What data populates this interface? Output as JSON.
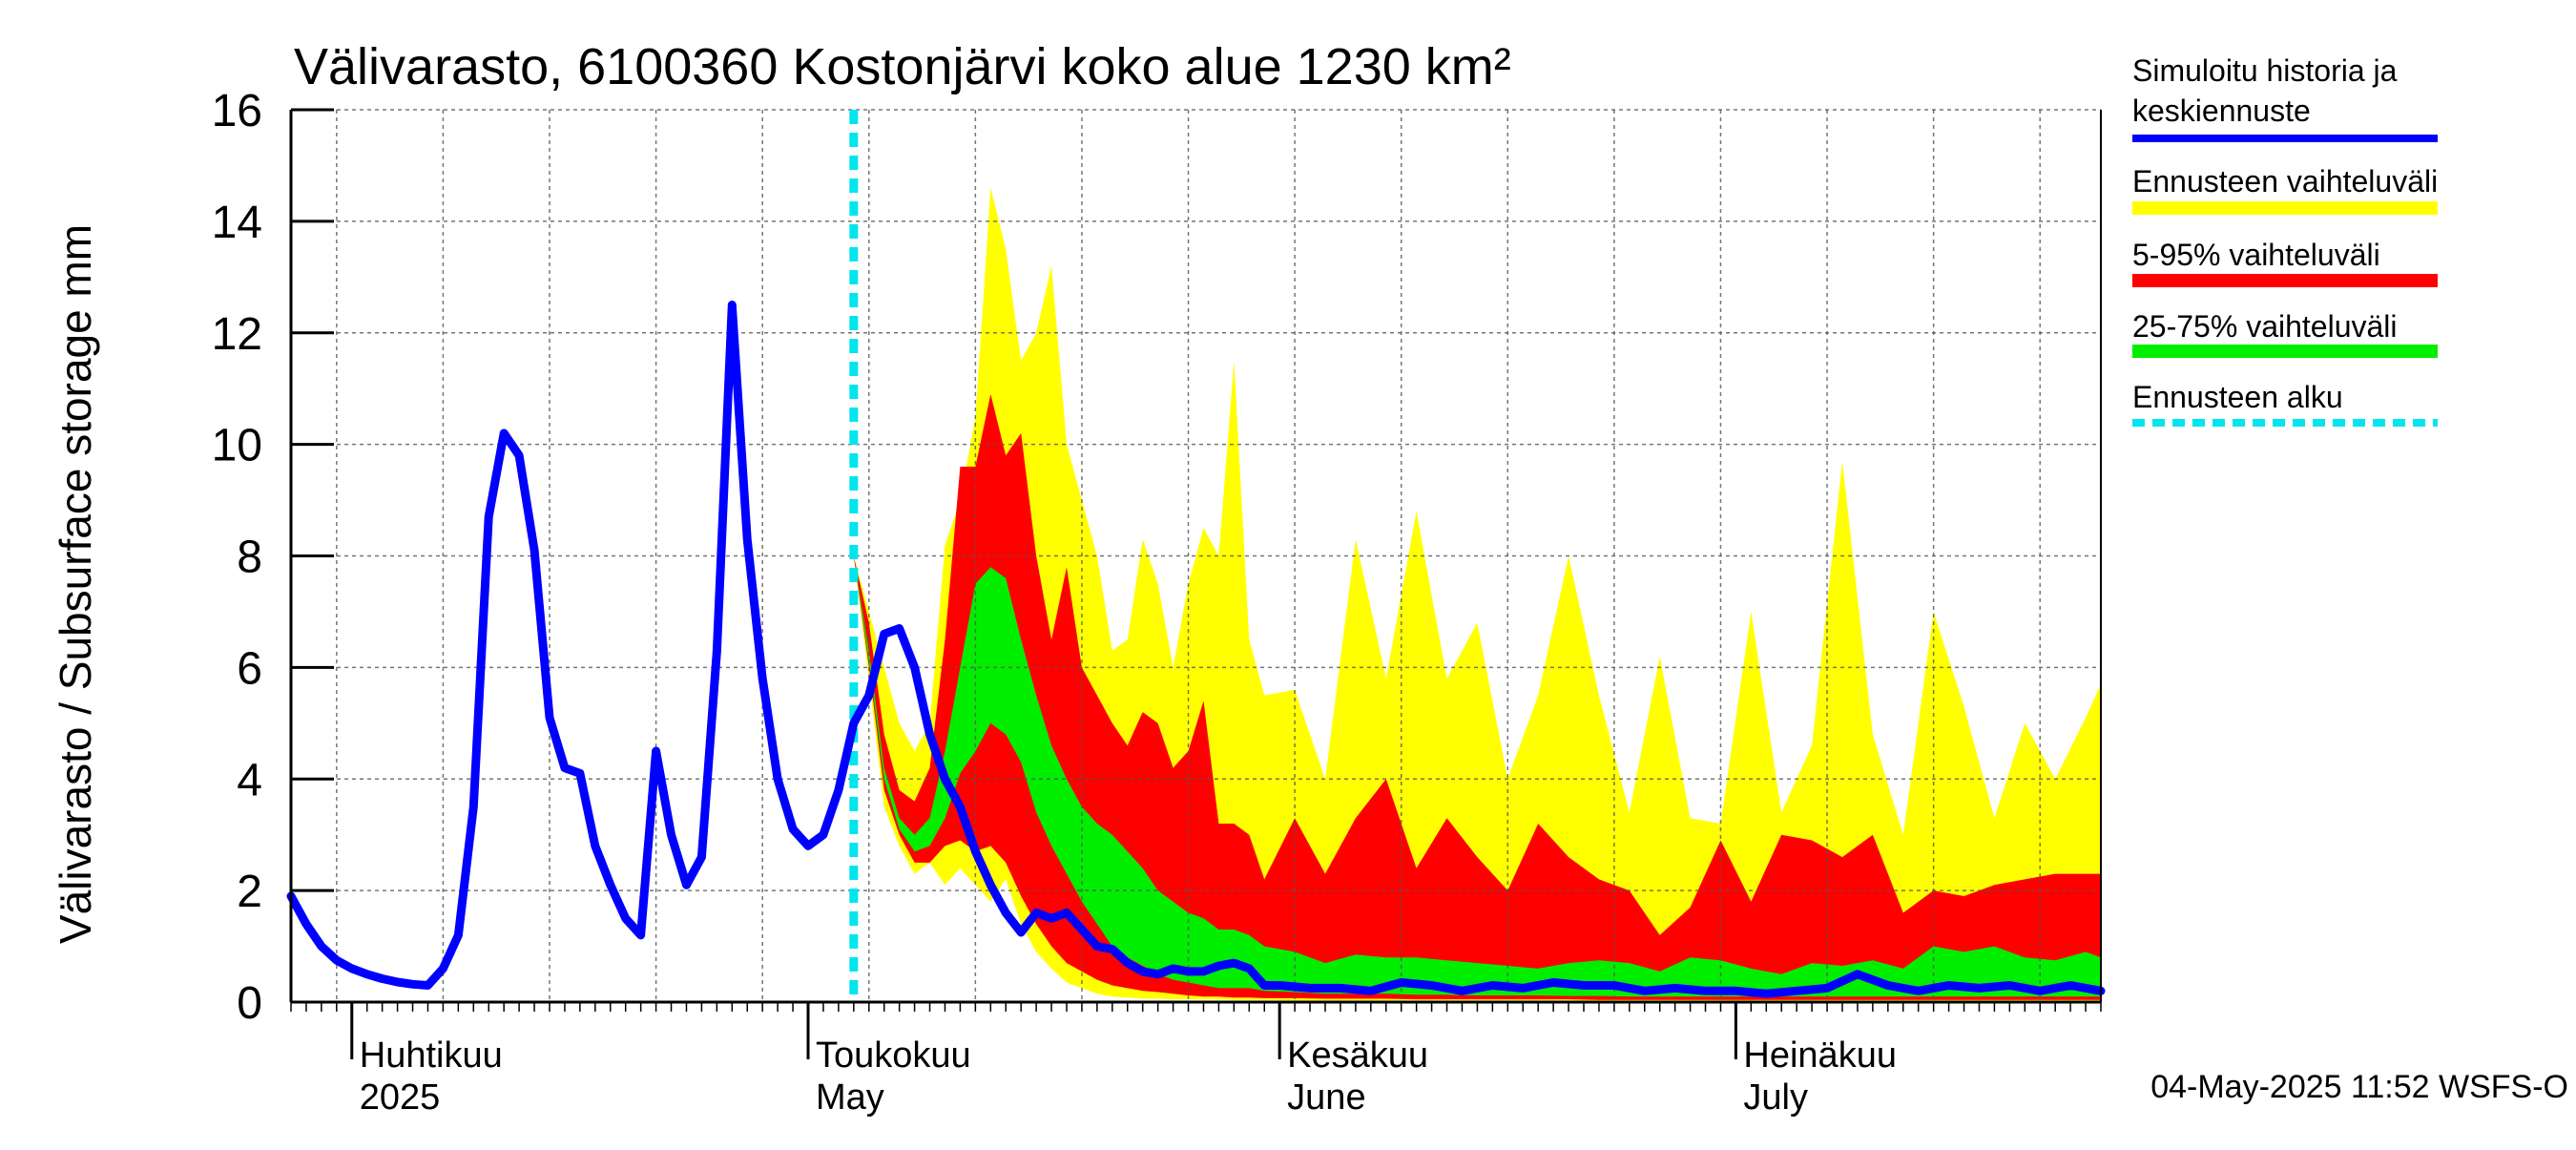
{
  "chart_data": {
    "type": "area",
    "title": "Välivarasto, 6100360 Kostonjärvi koko alue 1230 km²",
    "ylabel": "Välivarasto / Subsurface storage  mm",
    "xlabel": "",
    "ylim": [
      0,
      16
    ],
    "yticks": [
      0,
      2,
      4,
      6,
      8,
      10,
      12,
      14,
      16
    ],
    "ytick_labels": [
      "0",
      "2",
      "4",
      "6",
      "8",
      "10",
      "12",
      "14",
      "16"
    ],
    "xlim": [
      "2025-03-28",
      "2025-07-25"
    ],
    "forecast_start": "2025-05-04",
    "grid": true,
    "legend_position": "right",
    "month_labels": [
      {
        "date": "2025-04-01",
        "line1": "Huhtikuu",
        "line2": "2025"
      },
      {
        "date": "2025-05-01",
        "line1": "Toukokuu",
        "line2": "May"
      },
      {
        "date": "2025-06-01",
        "line1": "Kesäkuu",
        "line2": "June"
      },
      {
        "date": "2025-07-01",
        "line1": "Heinäkuu",
        "line2": "July"
      }
    ],
    "legend": [
      {
        "label": "Simuloitu historia ja keskiennuste",
        "lines": [
          "Simuloitu historia ja",
          "keskiennuste"
        ],
        "color": "#0000ff",
        "style": "line"
      },
      {
        "label": "Ennusteen vaihteluväli",
        "lines": [
          "Ennusteen vaihteluväli"
        ],
        "color": "#ffff00",
        "style": "band"
      },
      {
        "label": "5-95% vaihteluväli",
        "lines": [
          "5-95% vaihteluväli"
        ],
        "color": "#ff0000",
        "style": "band"
      },
      {
        "label": "25-75% vaihteluväli",
        "lines": [
          "25-75% vaihteluväli"
        ],
        "color": "#00ee00",
        "style": "band"
      },
      {
        "label": "Ennusteen alku",
        "lines": [
          "Ennusteen alku"
        ],
        "color": "#00e5ee",
        "style": "dashed"
      }
    ],
    "footer": "04-May-2025 11:52 WSFS-O",
    "series": [
      {
        "name": "Simuloitu historia ja keskiennuste",
        "color": "#0000ff",
        "dates": [
          "2025-03-28",
          "2025-03-29",
          "2025-03-30",
          "2025-03-31",
          "2025-04-01",
          "2025-04-02",
          "2025-04-03",
          "2025-04-04",
          "2025-04-05",
          "2025-04-06",
          "2025-04-07",
          "2025-04-08",
          "2025-04-09",
          "2025-04-10",
          "2025-04-11",
          "2025-04-12",
          "2025-04-13",
          "2025-04-14",
          "2025-04-15",
          "2025-04-16",
          "2025-04-17",
          "2025-04-18",
          "2025-04-19",
          "2025-04-20",
          "2025-04-21",
          "2025-04-22",
          "2025-04-23",
          "2025-04-24",
          "2025-04-25",
          "2025-04-26",
          "2025-04-27",
          "2025-04-28",
          "2025-04-29",
          "2025-04-30",
          "2025-05-01",
          "2025-05-02",
          "2025-05-03",
          "2025-05-04",
          "2025-05-05",
          "2025-05-06",
          "2025-05-07",
          "2025-05-08",
          "2025-05-09",
          "2025-05-10",
          "2025-05-11",
          "2025-05-12",
          "2025-05-13",
          "2025-05-14",
          "2025-05-15",
          "2025-05-16",
          "2025-05-17",
          "2025-05-18",
          "2025-05-19",
          "2025-05-20",
          "2025-05-21",
          "2025-05-22",
          "2025-05-23",
          "2025-05-24",
          "2025-05-25",
          "2025-05-26",
          "2025-05-27",
          "2025-05-28",
          "2025-05-29",
          "2025-05-30",
          "2025-05-31",
          "2025-06-01",
          "2025-06-03",
          "2025-06-05",
          "2025-06-07",
          "2025-06-09",
          "2025-06-11",
          "2025-06-13",
          "2025-06-15",
          "2025-06-17",
          "2025-06-19",
          "2025-06-21",
          "2025-06-23",
          "2025-06-25",
          "2025-06-27",
          "2025-06-29",
          "2025-07-01",
          "2025-07-03",
          "2025-07-05",
          "2025-07-07",
          "2025-07-09",
          "2025-07-11",
          "2025-07-13",
          "2025-07-15",
          "2025-07-17",
          "2025-07-19",
          "2025-07-21",
          "2025-07-23",
          "2025-07-25"
        ],
        "values": [
          1.9,
          1.4,
          1.0,
          0.75,
          0.6,
          0.5,
          0.42,
          0.36,
          0.32,
          0.3,
          0.6,
          1.2,
          3.5,
          8.7,
          10.2,
          9.8,
          8.1,
          5.1,
          4.2,
          4.1,
          2.8,
          2.1,
          1.5,
          1.2,
          4.5,
          3.0,
          2.1,
          2.6,
          6.3,
          12.5,
          8.3,
          5.8,
          4.0,
          3.1,
          2.8,
          3.0,
          3.8,
          5.0,
          5.5,
          6.6,
          6.7,
          6.0,
          4.8,
          4.0,
          3.5,
          2.7,
          2.1,
          1.6,
          1.25,
          1.6,
          1.5,
          1.6,
          1.3,
          1.0,
          0.95,
          0.7,
          0.55,
          0.5,
          0.6,
          0.55,
          0.55,
          0.65,
          0.7,
          0.6,
          0.3,
          0.3,
          0.25,
          0.25,
          0.2,
          0.35,
          0.3,
          0.2,
          0.3,
          0.25,
          0.35,
          0.3,
          0.3,
          0.2,
          0.25,
          0.2,
          0.2,
          0.15,
          0.2,
          0.25,
          0.5,
          0.3,
          0.2,
          0.3,
          0.25,
          0.3,
          0.2,
          0.3,
          0.2
        ]
      },
      {
        "name": "Ennusteen vaihteluväli",
        "color": "#ffff00",
        "dates": [
          "2025-05-04",
          "2025-05-05",
          "2025-05-06",
          "2025-05-07",
          "2025-05-08",
          "2025-05-09",
          "2025-05-10",
          "2025-05-11",
          "2025-05-12",
          "2025-05-13",
          "2025-05-14",
          "2025-05-15",
          "2025-05-16",
          "2025-05-17",
          "2025-05-18",
          "2025-05-19",
          "2025-05-20",
          "2025-05-21",
          "2025-05-22",
          "2025-05-23",
          "2025-05-24",
          "2025-05-25",
          "2025-05-26",
          "2025-05-27",
          "2025-05-28",
          "2025-05-29",
          "2025-05-30",
          "2025-05-31",
          "2025-06-02",
          "2025-06-04",
          "2025-06-06",
          "2025-06-08",
          "2025-06-10",
          "2025-06-12",
          "2025-06-14",
          "2025-06-16",
          "2025-06-18",
          "2025-06-20",
          "2025-06-22",
          "2025-06-24",
          "2025-06-26",
          "2025-06-28",
          "2025-06-30",
          "2025-07-02",
          "2025-07-04",
          "2025-07-06",
          "2025-07-08",
          "2025-07-10",
          "2025-07-12",
          "2025-07-14",
          "2025-07-16",
          "2025-07-18",
          "2025-07-20",
          "2025-07-22",
          "2025-07-24",
          "2025-07-25"
        ],
        "upper": [
          8.0,
          7.0,
          6.0,
          5.0,
          4.5,
          5.0,
          8.2,
          9.0,
          10.5,
          14.6,
          13.5,
          11.5,
          12.0,
          13.2,
          10.0,
          9.0,
          8.0,
          6.3,
          6.5,
          8.3,
          7.5,
          6.0,
          7.5,
          8.5,
          8.0,
          11.5,
          6.5,
          5.5,
          5.6,
          4.0,
          8.3,
          5.8,
          8.8,
          5.8,
          6.8,
          4.0,
          5.5,
          8.0,
          5.5,
          3.4,
          6.2,
          3.3,
          3.2,
          7.0,
          3.4,
          4.6,
          9.7,
          4.8,
          3.0,
          7.0,
          5.3,
          3.3,
          5.0,
          4.0,
          5.1,
          5.7
        ],
        "lower": [
          8.0,
          5.8,
          3.5,
          2.8,
          2.3,
          2.5,
          2.1,
          2.4,
          2.1,
          1.8,
          2.2,
          1.4,
          0.9,
          0.6,
          0.35,
          0.25,
          0.15,
          0.1,
          0.08,
          0.06,
          0.06,
          0.05,
          0.05,
          0.05,
          0.05,
          0.04,
          0.04,
          0.04,
          0.03,
          0.03,
          0.03,
          0.03,
          0.03,
          0.03,
          0.03,
          0.03,
          0.03,
          0.03,
          0.02,
          0.02,
          0.02,
          0.02,
          0.02,
          0.02,
          0.02,
          0.02,
          0.02,
          0.02,
          0.02,
          0.02,
          0.02,
          0.02,
          0.02,
          0.02,
          0.02,
          0.02
        ]
      },
      {
        "name": "5-95% vaihteluväli",
        "color": "#ff0000",
        "dates": [
          "2025-05-04",
          "2025-05-05",
          "2025-05-06",
          "2025-05-07",
          "2025-05-08",
          "2025-05-09",
          "2025-05-10",
          "2025-05-11",
          "2025-05-12",
          "2025-05-13",
          "2025-05-14",
          "2025-05-15",
          "2025-05-16",
          "2025-05-17",
          "2025-05-18",
          "2025-05-19",
          "2025-05-20",
          "2025-05-21",
          "2025-05-22",
          "2025-05-23",
          "2025-05-24",
          "2025-05-25",
          "2025-05-26",
          "2025-05-27",
          "2025-05-28",
          "2025-05-29",
          "2025-05-30",
          "2025-05-31",
          "2025-06-02",
          "2025-06-04",
          "2025-06-06",
          "2025-06-08",
          "2025-06-10",
          "2025-06-12",
          "2025-06-14",
          "2025-06-16",
          "2025-06-18",
          "2025-06-20",
          "2025-06-22",
          "2025-06-24",
          "2025-06-26",
          "2025-06-28",
          "2025-06-30",
          "2025-07-02",
          "2025-07-04",
          "2025-07-06",
          "2025-07-08",
          "2025-07-10",
          "2025-07-12",
          "2025-07-14",
          "2025-07-16",
          "2025-07-18",
          "2025-07-20",
          "2025-07-22",
          "2025-07-24",
          "2025-07-25"
        ],
        "upper": [
          8.0,
          6.8,
          4.8,
          3.8,
          3.6,
          4.2,
          6.5,
          9.6,
          9.6,
          10.9,
          9.8,
          10.2,
          8.0,
          6.5,
          7.8,
          6.0,
          5.5,
          5.0,
          4.6,
          5.2,
          5.0,
          4.2,
          4.5,
          5.4,
          3.2,
          3.2,
          3.0,
          2.2,
          3.3,
          2.3,
          3.3,
          4.0,
          2.4,
          3.3,
          2.6,
          2.0,
          3.2,
          2.6,
          2.2,
          2.0,
          1.2,
          1.7,
          2.9,
          1.8,
          3.0,
          2.9,
          2.6,
          3.0,
          1.6,
          2.0,
          1.9,
          2.1,
          2.2,
          2.3,
          2.3,
          2.3
        ],
        "lower": [
          8.0,
          6.0,
          3.8,
          3.0,
          2.5,
          2.5,
          2.8,
          2.9,
          2.7,
          2.8,
          2.5,
          1.9,
          1.4,
          1.0,
          0.7,
          0.55,
          0.4,
          0.3,
          0.25,
          0.2,
          0.18,
          0.15,
          0.12,
          0.1,
          0.1,
          0.08,
          0.08,
          0.07,
          0.07,
          0.06,
          0.06,
          0.06,
          0.05,
          0.05,
          0.05,
          0.05,
          0.05,
          0.05,
          0.04,
          0.04,
          0.04,
          0.04,
          0.04,
          0.04,
          0.04,
          0.04,
          0.04,
          0.04,
          0.04,
          0.04,
          0.04,
          0.04,
          0.04,
          0.04,
          0.04,
          0.04
        ]
      },
      {
        "name": "25-75% vaihteluväli",
        "color": "#00ee00",
        "dates": [
          "2025-05-04",
          "2025-05-05",
          "2025-05-06",
          "2025-05-07",
          "2025-05-08",
          "2025-05-09",
          "2025-05-10",
          "2025-05-11",
          "2025-05-12",
          "2025-05-13",
          "2025-05-14",
          "2025-05-15",
          "2025-05-16",
          "2025-05-17",
          "2025-05-18",
          "2025-05-19",
          "2025-05-20",
          "2025-05-21",
          "2025-05-22",
          "2025-05-23",
          "2025-05-24",
          "2025-05-25",
          "2025-05-26",
          "2025-05-27",
          "2025-05-28",
          "2025-05-29",
          "2025-05-30",
          "2025-05-31",
          "2025-06-02",
          "2025-06-04",
          "2025-06-06",
          "2025-06-08",
          "2025-06-10",
          "2025-06-12",
          "2025-06-14",
          "2025-06-16",
          "2025-06-18",
          "2025-06-20",
          "2025-06-22",
          "2025-06-24",
          "2025-06-26",
          "2025-06-28",
          "2025-06-30",
          "2025-07-02",
          "2025-07-04",
          "2025-07-06",
          "2025-07-08",
          "2025-07-10",
          "2025-07-12",
          "2025-07-14",
          "2025-07-16",
          "2025-07-18",
          "2025-07-20",
          "2025-07-22",
          "2025-07-24",
          "2025-07-25"
        ],
        "upper": [
          8.0,
          6.3,
          4.2,
          3.3,
          3.0,
          3.3,
          4.5,
          6.0,
          7.5,
          7.8,
          7.6,
          6.5,
          5.5,
          4.6,
          4.0,
          3.5,
          3.2,
          3.0,
          2.7,
          2.4,
          2.0,
          1.8,
          1.6,
          1.5,
          1.3,
          1.3,
          1.2,
          1.0,
          0.9,
          0.7,
          0.85,
          0.8,
          0.8,
          0.75,
          0.7,
          0.65,
          0.6,
          0.7,
          0.75,
          0.7,
          0.55,
          0.8,
          0.75,
          0.6,
          0.5,
          0.7,
          0.65,
          0.75,
          0.6,
          1.0,
          0.9,
          1.0,
          0.8,
          0.75,
          0.9,
          0.8
        ],
        "lower": [
          8.0,
          6.1,
          4.0,
          3.1,
          2.7,
          2.8,
          3.3,
          4.1,
          4.5,
          5.0,
          4.8,
          4.3,
          3.4,
          2.8,
          2.3,
          1.8,
          1.4,
          1.0,
          0.8,
          0.65,
          0.5,
          0.4,
          0.35,
          0.3,
          0.25,
          0.25,
          0.25,
          0.2,
          0.18,
          0.15,
          0.15,
          0.15,
          0.13,
          0.13,
          0.12,
          0.12,
          0.12,
          0.11,
          0.11,
          0.1,
          0.1,
          0.1,
          0.1,
          0.1,
          0.1,
          0.1,
          0.1,
          0.1,
          0.1,
          0.1,
          0.1,
          0.1,
          0.1,
          0.1,
          0.1,
          0.1
        ]
      }
    ]
  }
}
